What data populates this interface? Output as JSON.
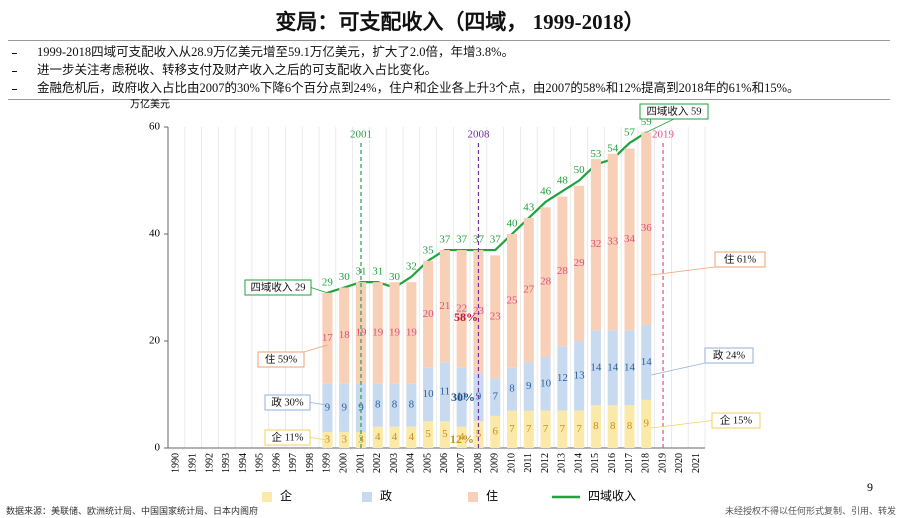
{
  "chart_data": {
    "type": "bar",
    "title": "变局：可支配收入（四域， 1999-2018）",
    "notes": [
      "1999-2018四域可支配收入从28.9万亿美元增至59.1万亿美元，扩大了2.0倍，年增3.8%。",
      "进一步关注考虑税收、转移支付及财产收入之后的可支配收入占比变化。",
      "金融危机后，政府收入占比由2007的30%下降6个百分点到24%，住户和企业各上升3个点，由2007的58%和12%提高到2018年的61%和15%。"
    ],
    "y_label": "万亿美元",
    "categories": [
      "1990",
      "1991",
      "1992",
      "1993",
      "1994",
      "1995",
      "1996",
      "1997",
      "1998",
      "1999",
      "2000",
      "2001",
      "2002",
      "2003",
      "2004",
      "2005",
      "2006",
      "2007",
      "2008",
      "2009",
      "2010",
      "2011",
      "2012",
      "2013",
      "2014",
      "2015",
      "2016",
      "2017",
      "2018",
      "2019",
      "2020",
      "2021"
    ],
    "series": [
      {
        "name": "企",
        "color": "#fbe9a9",
        "label_color": "#c8901c",
        "values": [
          null,
          null,
          null,
          null,
          null,
          null,
          null,
          null,
          null,
          3,
          3,
          3,
          4,
          4,
          4,
          5,
          5,
          4,
          5,
          6,
          7,
          7,
          7,
          7,
          7,
          8,
          8,
          8,
          9,
          null,
          null,
          null
        ]
      },
      {
        "name": "政",
        "color": "#c7daf0",
        "label_color": "#2f5f9a",
        "values": [
          null,
          null,
          null,
          null,
          null,
          null,
          null,
          null,
          null,
          9,
          9,
          9,
          8,
          8,
          8,
          10,
          11,
          11,
          9,
          7,
          8,
          9,
          10,
          12,
          13,
          14,
          14,
          14,
          14,
          null,
          null,
          null
        ]
      },
      {
        "name": "住",
        "color": "#f8d0b8",
        "label_color": "#e0507a",
        "values": [
          null,
          null,
          null,
          null,
          null,
          null,
          null,
          null,
          null,
          17,
          18,
          19,
          19,
          19,
          19,
          20,
          21,
          22,
          23,
          23,
          25,
          27,
          28,
          28,
          29,
          32,
          33,
          34,
          36,
          null,
          null,
          null
        ]
      },
      {
        "name": "四域收入",
        "type": "line",
        "color": "#1fa33c",
        "label_color": "#1fa33c",
        "values": [
          null,
          null,
          null,
          null,
          null,
          null,
          null,
          null,
          null,
          29,
          30,
          31,
          31,
          30,
          32,
          35,
          37,
          37,
          37,
          37,
          40,
          43,
          46,
          48,
          50,
          53,
          54,
          57,
          59,
          null,
          null,
          null
        ]
      }
    ],
    "ylim": [
      0,
      60
    ],
    "yticks": [
      0,
      20,
      40,
      60
    ],
    "markers": [
      {
        "category": "2001",
        "color": "#2e9e45"
      },
      {
        "category": "2008",
        "color": "#7030a0"
      },
      {
        "category": "2019",
        "color": "#e0508a"
      }
    ],
    "annotations": [
      {
        "text": "四域收入 29",
        "style": "box",
        "color": "#1fa33c"
      },
      {
        "text": "住 59%",
        "style": "box",
        "color": "#f0a070"
      },
      {
        "text": "政 30%",
        "style": "box",
        "color": "#8fb2de"
      },
      {
        "text": "企 11%",
        "style": "box",
        "color": "#f0d060"
      },
      {
        "text": "四域收入 59",
        "style": "box",
        "color": "#1fa33c"
      },
      {
        "text": "住 61%",
        "style": "box",
        "color": "#f0a070"
      },
      {
        "text": "政 24%",
        "style": "box",
        "color": "#8fb2de"
      },
      {
        "text": "企 15%",
        "style": "box",
        "color": "#f0d060"
      },
      {
        "text": "58%",
        "style": "text",
        "color": "#c0143c"
      },
      {
        "text": "30%",
        "style": "text",
        "color": "#1f4e8c"
      },
      {
        "text": "12%",
        "style": "text",
        "color": "#c8901c"
      }
    ],
    "source": "数据来源：美联储、欧洲统计局、中国国家统计局、日本内阁府",
    "footer": "未经授权不得以任何形式复制、引用、转发",
    "page": "9"
  }
}
